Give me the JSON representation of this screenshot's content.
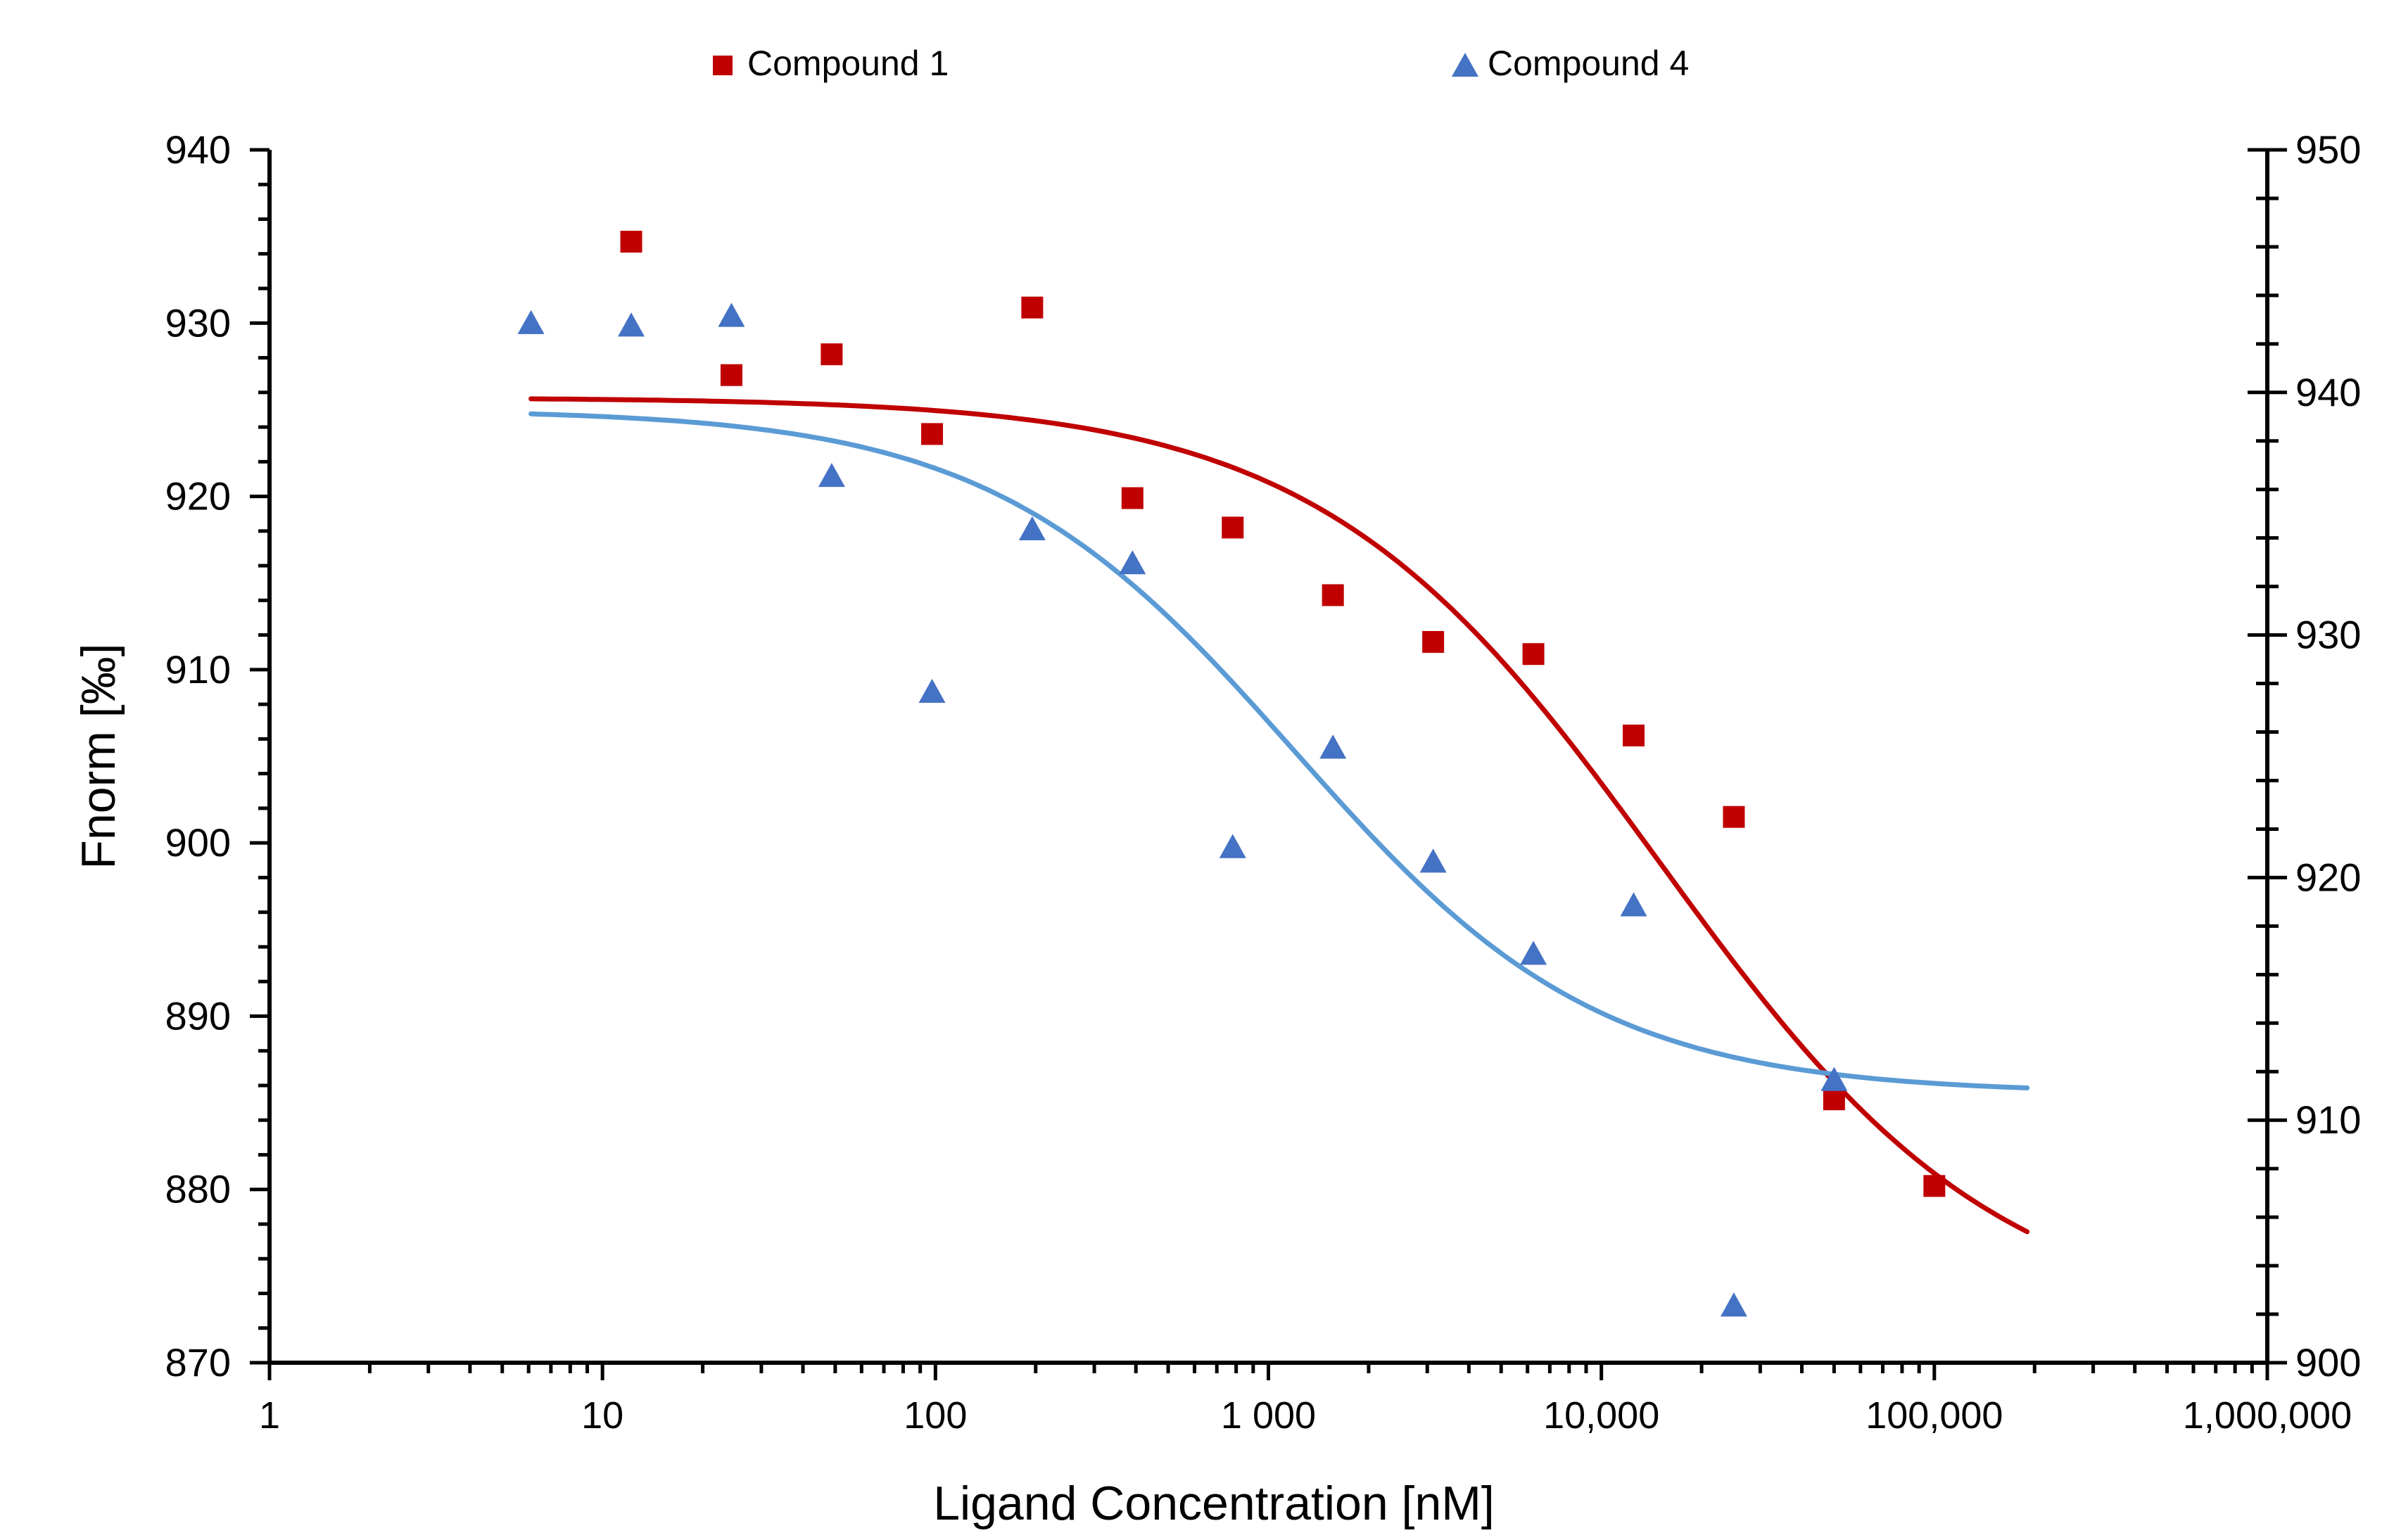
{
  "chart_data": {
    "type": "scatter",
    "title": "",
    "xlabel": "Ligand Concentration [nM]",
    "ylabel": "Fnorm [‰]",
    "x_scale": "log",
    "xlim": [
      1,
      1000000
    ],
    "ylim": [
      870,
      940
    ],
    "y2lim": [
      900,
      950
    ],
    "x_tick_values": [
      1,
      10,
      100,
      1000,
      10000,
      100000,
      1000000
    ],
    "x_tick_labels": [
      "1",
      "10",
      "100",
      "1 000",
      "10,000",
      "100,000",
      "1,000,000"
    ],
    "y_tick_values": [
      870,
      880,
      890,
      900,
      910,
      920,
      930,
      940
    ],
    "y_tick_labels": [
      "870",
      "880",
      "890",
      "900",
      "910",
      "920",
      "930",
      "940"
    ],
    "y2_tick_values": [
      900,
      910,
      920,
      930,
      940,
      950
    ],
    "y2_tick_labels": [
      "900",
      "910",
      "920",
      "930",
      "940",
      "950"
    ],
    "legend_position": "top-center",
    "series": [
      {
        "name": "Compound 1",
        "marker": "square",
        "color": "#C00000",
        "axis": "left",
        "x": [
          12.2,
          24.4,
          48.8,
          97.7,
          195.3,
          390.6,
          781.3,
          1562.5,
          3125,
          6250,
          12500,
          25000,
          50000,
          100000
        ],
        "y": [
          934.7,
          927.0,
          928.2,
          923.6,
          930.9,
          919.9,
          918.2,
          914.3,
          911.6,
          910.9,
          906.2,
          901.5,
          885.2,
          880.2
        ],
        "fit": {
          "model": "sigmoid-log",
          "top": 925.7,
          "bottom": 872.0,
          "ec50": 15000,
          "hill": 0.85,
          "x_range": [
            6.1,
            190000
          ]
        }
      },
      {
        "name": "Compound 4",
        "marker": "triangle",
        "color": "#4472C4",
        "line_color": "#5B9BD5",
        "axis": "right",
        "x": [
          6.1,
          12.2,
          24.4,
          48.8,
          97.7,
          195.3,
          390.6,
          781.3,
          1562.5,
          3125,
          6250,
          12500,
          25000,
          50000
        ],
        "y": [
          942.8,
          942.7,
          943.1,
          936.5,
          927.6,
          934.3,
          932.9,
          921.2,
          925.3,
          920.6,
          916.8,
          918.8,
          902.3,
          911.6
        ],
        "fit": {
          "model": "sigmoid-log",
          "top": 939.3,
          "bottom": 911.1,
          "ec50": 1200,
          "hill": 0.95,
          "x_range": [
            6.1,
            190000
          ]
        }
      }
    ]
  }
}
